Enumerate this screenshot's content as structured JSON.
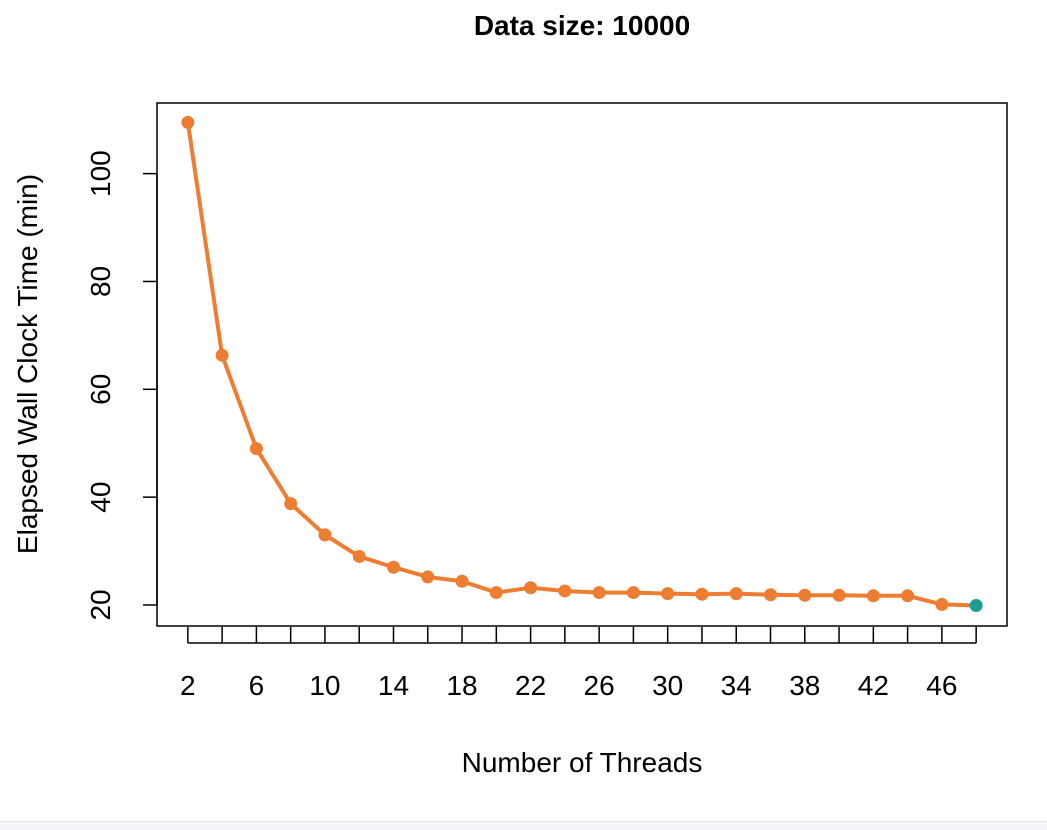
{
  "chart_data": {
    "type": "line",
    "title": "Data size: 10000",
    "xlabel": "Number of Threads",
    "ylabel": "Elapsed Wall Clock Time (min)",
    "x_ticks": [
      2,
      4,
      6,
      8,
      10,
      12,
      14,
      16,
      18,
      20,
      22,
      24,
      26,
      28,
      30,
      32,
      34,
      36,
      38,
      40,
      42,
      44,
      46,
      48
    ],
    "x_tick_labels": [
      "2",
      "6",
      "10",
      "14",
      "18",
      "22",
      "26",
      "30",
      "34",
      "38",
      "42",
      "46"
    ],
    "y_ticks": [
      20,
      40,
      60,
      80,
      100
    ],
    "xlim": [
      0.2,
      49.8
    ],
    "ylim": [
      16.1,
      113.1
    ],
    "grid": false,
    "series": [
      {
        "color": "#ed7d31",
        "x": [
          2,
          4,
          6,
          8,
          10,
          12,
          14,
          16,
          18,
          20,
          22,
          24,
          26,
          28,
          30,
          32,
          34,
          36,
          38,
          40,
          42,
          44,
          46,
          48
        ],
        "values": [
          109.5,
          66.3,
          49.0,
          38.8,
          33.0,
          29.0,
          27.0,
          25.2,
          24.4,
          22.3,
          23.2,
          22.6,
          22.3,
          22.3,
          22.1,
          22.0,
          22.1,
          21.9,
          21.8,
          21.8,
          21.7,
          21.7,
          20.1,
          19.9
        ],
        "highlight_last_color": "#1a9e96"
      }
    ]
  }
}
